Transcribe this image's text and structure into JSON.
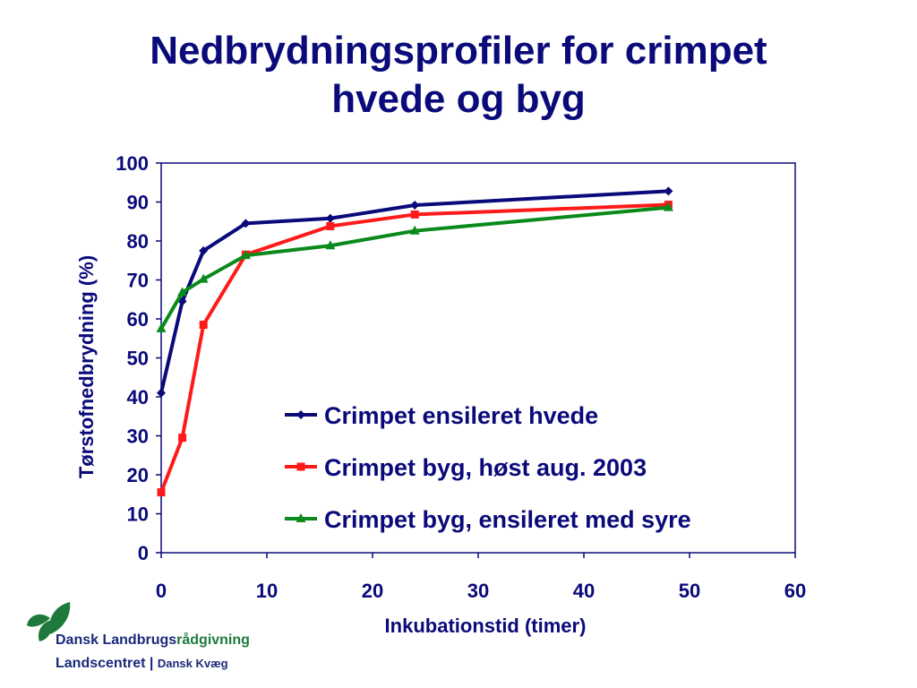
{
  "chart_data": {
    "type": "line",
    "title_line1": "Nedbrydningsprofiler for crimpet",
    "title_line2": "hvede og byg",
    "xlabel": "Inkubationstid (timer)",
    "ylabel": "Tørstofnedbrydning (%)",
    "xlim": [
      0,
      60
    ],
    "ylim": [
      0,
      100
    ],
    "xticks": [
      0,
      10,
      20,
      30,
      40,
      50,
      60
    ],
    "yticks": [
      0,
      10,
      20,
      30,
      40,
      50,
      60,
      70,
      80,
      90,
      100
    ],
    "grid": false,
    "legend_position": "center-right",
    "series": [
      {
        "name": "Crimpet ensileret hvede",
        "color": "#0a0a7a",
        "marker": "diamond",
        "x": [
          0,
          2,
          4,
          8,
          16,
          24,
          48
        ],
        "y": [
          41,
          64.5,
          77.5,
          84.5,
          85.8,
          89.2,
          92.8
        ]
      },
      {
        "name": "Crimpet byg, høst aug. 2003",
        "color": "#ff1a1a",
        "marker": "square",
        "x": [
          0,
          2,
          4,
          8,
          16,
          24,
          48
        ],
        "y": [
          15.5,
          29.5,
          58.5,
          76.5,
          83.8,
          86.8,
          89.3
        ]
      },
      {
        "name": "Crimpet byg, ensileret med syre",
        "color": "#0a8a1a",
        "marker": "triangle",
        "x": [
          0,
          2,
          4,
          8,
          16,
          24,
          48
        ],
        "y": [
          57.5,
          66.8,
          70.2,
          76.3,
          78.8,
          82.6,
          88.6
        ]
      }
    ]
  },
  "logo": {
    "line1_main": "Dansk Landbrugs",
    "line1_accent": "rådgivning",
    "line2_main": "Landscentret",
    "line2_sep": " | ",
    "line2_small": "Dansk Kvæg",
    "colors": {
      "green": "#1e7a3c",
      "navy": "#1a2a7a"
    }
  }
}
